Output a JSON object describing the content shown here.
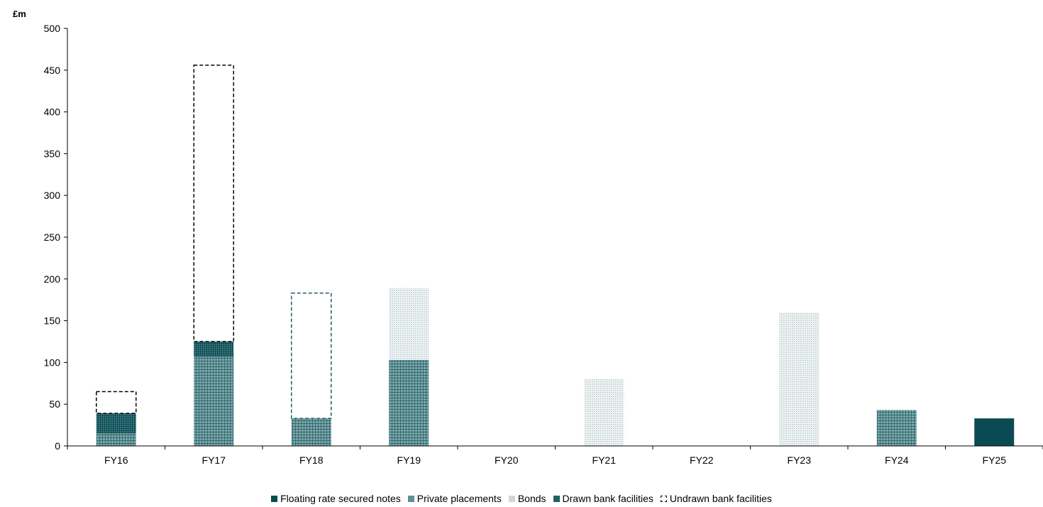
{
  "chart_data": {
    "type": "bar",
    "stacked": true,
    "y_unit_label": "£m",
    "categories": [
      "FY16",
      "FY17",
      "FY18",
      "FY19",
      "FY20",
      "FY21",
      "FY22",
      "FY23",
      "FY24",
      "FY25"
    ],
    "ylim": [
      0,
      500
    ],
    "yticks": [
      0,
      50,
      100,
      150,
      200,
      250,
      300,
      350,
      400,
      450,
      500
    ],
    "grid": false,
    "legend_position": "bottom",
    "series": [
      {
        "name": "Private placements",
        "color": "#5f8f93",
        "pattern": "grid",
        "values": [
          15,
          107,
          33,
          103,
          0,
          0,
          0,
          0,
          43,
          0
        ]
      },
      {
        "name": "Drawn bank facilities",
        "color": "#1f5f67",
        "pattern": "dense-grid",
        "values": [
          24,
          18,
          0,
          0,
          0,
          0,
          0,
          0,
          0,
          0
        ]
      },
      {
        "name": "Bonds",
        "color": "#c9d8d8",
        "pattern": "dots",
        "values": [
          0,
          0,
          0,
          86,
          0,
          80,
          0,
          160,
          0,
          0
        ]
      },
      {
        "name": "Floating rate secured notes",
        "color": "#0b4a52",
        "pattern": "solid",
        "values": [
          0,
          0,
          0,
          0,
          0,
          0,
          0,
          0,
          0,
          33
        ]
      },
      {
        "name": "Undrawn bank facilities",
        "color": "#000000",
        "pattern": "dashed-outline",
        "values": [
          26,
          331,
          150,
          0,
          0,
          0,
          0,
          0,
          0,
          0
        ]
      }
    ],
    "legend_order": [
      "Floating rate secured notes",
      "Private placements",
      "Bonds",
      "Drawn bank facilities",
      "Undrawn bank facilities"
    ],
    "undrawn_outline_colors": [
      "#000000",
      "#000000",
      "#1f5f67",
      "#000000",
      "#000000",
      "#000000",
      "#000000",
      "#000000",
      "#000000",
      "#000000"
    ]
  }
}
